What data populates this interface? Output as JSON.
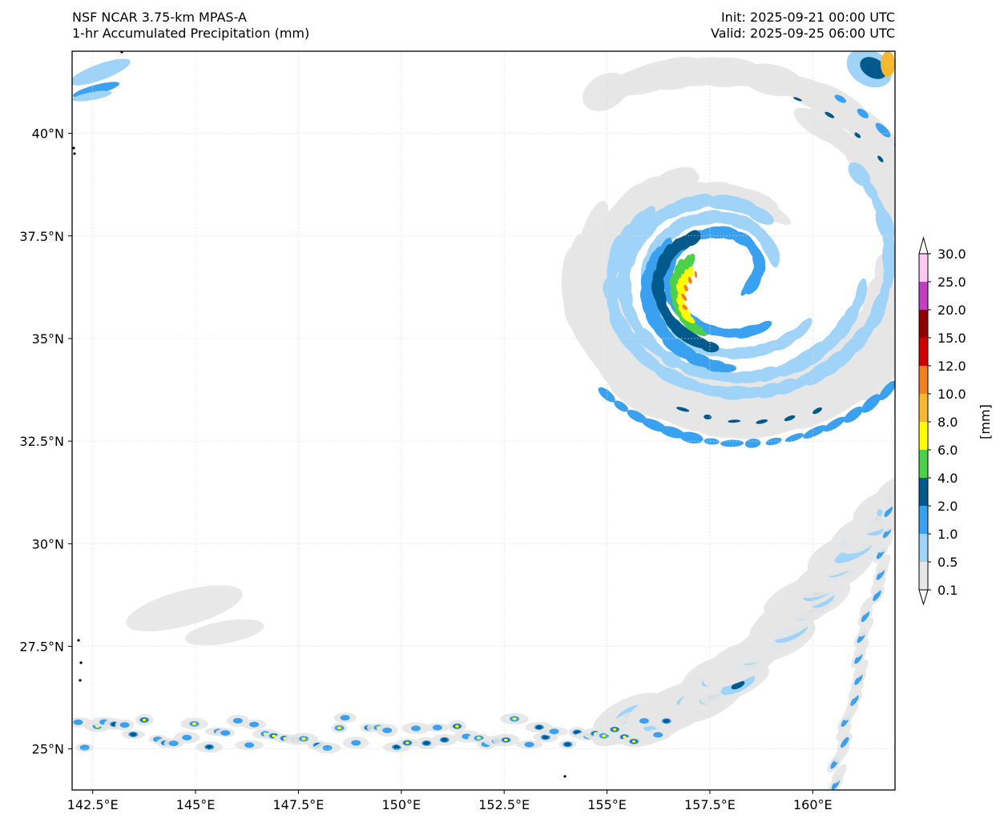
{
  "header": {
    "model": "NSF NCAR 3.75-km MPAS-A",
    "field": "1-hr Accumulated Precipitation (mm)",
    "init": "Init: 2025-09-21 00:00 UTC",
    "valid": "Valid: 2025-09-25 06:00 UTC"
  },
  "map": {
    "lon_range": [
      142.0,
      162.0
    ],
    "lat_range": [
      24.0,
      42.0
    ],
    "lon_ticks": [
      "142.5°E",
      "145°E",
      "147.5°E",
      "150°E",
      "152.5°E",
      "155°E",
      "157.5°E",
      "160°E"
    ],
    "lat_ticks": [
      "25°N",
      "27.5°N",
      "30°N",
      "32.5°N",
      "35°N",
      "37.5°N",
      "40°N"
    ],
    "gridlines": true
  },
  "colorbar": {
    "label": "[mm]",
    "levels": [
      "0.1",
      "0.5",
      "1.0",
      "2.0",
      "4.0",
      "6.0",
      "8.0",
      "10.0",
      "12.0",
      "15.0",
      "20.0",
      "25.0",
      "30.0"
    ],
    "colors": [
      "#e6e6e6",
      "#9fd3f7",
      "#3aa0f0",
      "#005a8c",
      "#4cd04c",
      "#ffff00",
      "#f5b82e",
      "#f08020",
      "#d00000",
      "#900000",
      "#c040c0",
      "#ffc8f0"
    ],
    "extend": "both"
  }
}
